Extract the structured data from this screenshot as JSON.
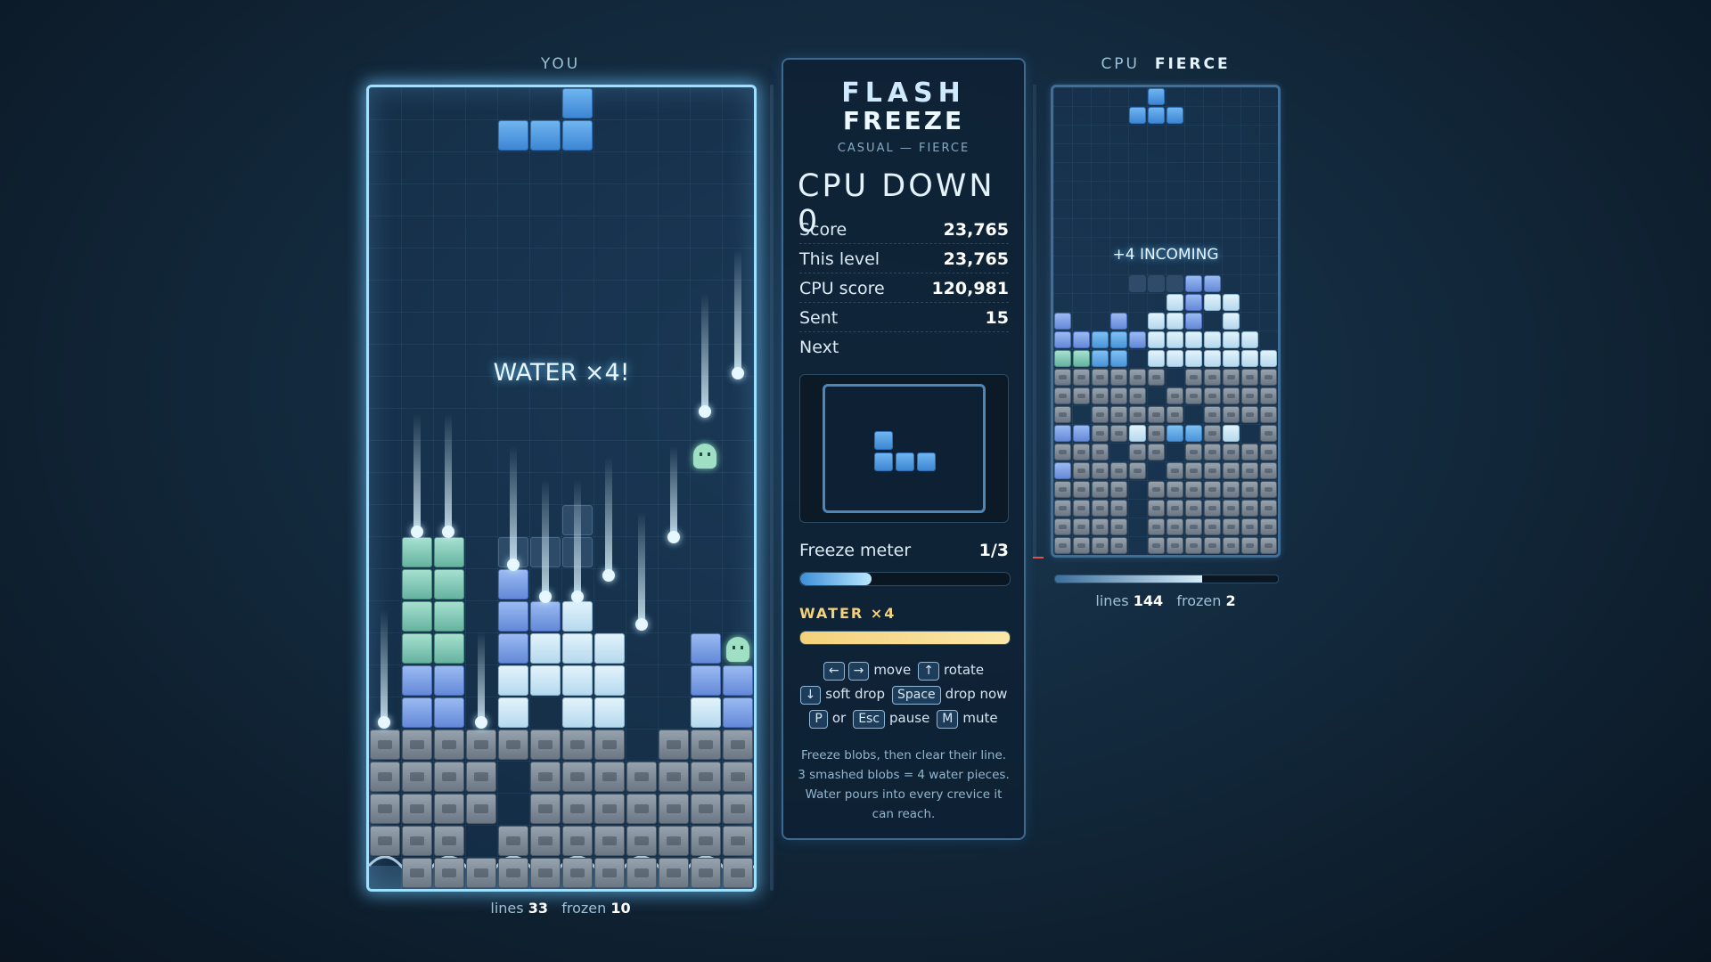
{
  "player": {
    "label": "YOU",
    "banner": "WATER ×4!",
    "lines_label": "lines",
    "lines": "33",
    "frozen_label": "frozen",
    "frozen": "10"
  },
  "cpu": {
    "label": "CPU",
    "difficulty": "FIERCE",
    "banner": "+4 INCOMING",
    "lines_label": "lines",
    "lines": "144",
    "frozen_label": "frozen",
    "frozen": "2"
  },
  "panel": {
    "title_line1": "FLASH",
    "title_line2": "FREEZE",
    "subtitle": "CASUAL — FIERCE",
    "status": "CPU DOWN 0",
    "stats": [
      {
        "label": "Score",
        "value": "23,765"
      },
      {
        "label": "This level",
        "value": "23,765"
      },
      {
        "label": "CPU score",
        "value": "120,981"
      },
      {
        "label": "Sent",
        "value": "15"
      }
    ],
    "next_label": "Next",
    "freeze_meter": {
      "label": "Freeze meter",
      "value": "1/3"
    },
    "water_label": "WATER ×4",
    "controls": [
      [
        {
          "key": "←"
        },
        {
          "key": "→"
        },
        {
          "text": "move"
        },
        {
          "key": "↑"
        },
        {
          "text": "rotate"
        }
      ],
      [
        {
          "key": "↓"
        },
        {
          "text": "soft drop"
        },
        {
          "key": "Space"
        },
        {
          "text": "drop now"
        }
      ],
      [
        {
          "key": "P"
        },
        {
          "text": "or"
        },
        {
          "key": "Esc"
        },
        {
          "text": "pause"
        },
        {
          "key": "M"
        },
        {
          "text": "mute"
        }
      ]
    ],
    "help": "Freeze blobs, then clear their line. 3 smashed blobs = 4 water pieces. Water pours into every crevice it can reach."
  }
}
